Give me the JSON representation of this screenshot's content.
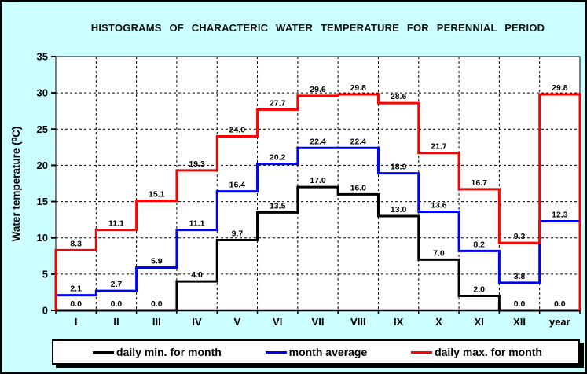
{
  "colors": {
    "background": "#CCFFFF",
    "plot_background": "#FFFFFF",
    "grid": "#000000",
    "axis": "#000000",
    "min_series": "#000000",
    "avg_series": "#0000FF",
    "max_series": "#FF0000"
  },
  "chart_data": {
    "type": "line",
    "subtype": "step-histogram",
    "title": "HISTOGRAMS OF CHARACTERIC WATER TEMPERATURE FOR PERENNIAL PERIOD",
    "categories": [
      "I",
      "II",
      "III",
      "IV",
      "V",
      "VI",
      "VII",
      "VIII",
      "IX",
      "X",
      "XI",
      "XII",
      "year"
    ],
    "series": [
      {
        "name": "daily min. for month",
        "color": "#000000",
        "values": [
          0.0,
          0.0,
          0.0,
          4.0,
          9.7,
          13.5,
          17.0,
          16.0,
          13.0,
          7.0,
          2.0,
          0.0,
          0.0
        ]
      },
      {
        "name": "month average",
        "color": "#0000FF",
        "values": [
          2.1,
          2.7,
          5.9,
          11.1,
          16.4,
          20.2,
          22.4,
          22.4,
          18.9,
          13.6,
          8.2,
          3.8,
          12.3
        ]
      },
      {
        "name": "daily max. for month",
        "color": "#FF0000",
        "values": [
          8.3,
          11.1,
          15.1,
          19.3,
          24.0,
          27.7,
          29.6,
          29.8,
          28.6,
          21.7,
          16.7,
          9.3,
          29.8
        ]
      }
    ],
    "xlabel": "",
    "ylabel": "Water temperature (⁰C)",
    "ylim": [
      0,
      35
    ],
    "ytick_step": 5,
    "grid": true,
    "grid_style": "dashed",
    "legend_position": "bottom"
  }
}
